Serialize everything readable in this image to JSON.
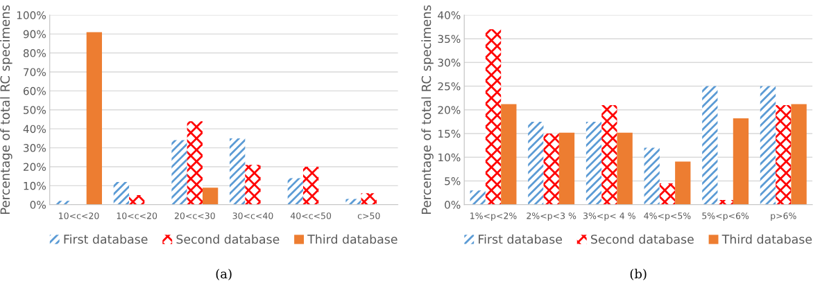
{
  "chart_data": [
    {
      "type": "bar",
      "ylabel": "Percentage of total RC specimens",
      "categories": [
        "10<c<20",
        "10<c<20",
        "20<c<30",
        "30<c<40",
        "40<c<50",
        "c>50"
      ],
      "series": [
        {
          "name": "First database",
          "color": "#5b9bd5",
          "values": [
            2,
            12,
            34,
            35,
            14,
            3
          ]
        },
        {
          "name": "Second database",
          "color": "#ff0000",
          "values": [
            0,
            5,
            44,
            21,
            20,
            6
          ]
        },
        {
          "name": "Third database",
          "color": "#ed7d31",
          "values": [
            91,
            0,
            9,
            0,
            0,
            0
          ]
        }
      ],
      "ylim": [
        0,
        100
      ],
      "yticks": [
        {
          "value": 0,
          "label": "0%"
        },
        {
          "value": 10,
          "label": "10%"
        },
        {
          "value": 20,
          "label": "20%"
        },
        {
          "value": 30,
          "label": "30%"
        },
        {
          "value": 40,
          "label": "40%"
        },
        {
          "value": 50,
          "label": "50%"
        },
        {
          "value": 60,
          "label": "60%"
        },
        {
          "value": 70,
          "label": "70%"
        },
        {
          "value": 80,
          "label": "80%"
        },
        {
          "value": 90,
          "label": "90%"
        },
        {
          "value": 100,
          "label": "100%"
        }
      ],
      "grid": "y",
      "legend": "bottom",
      "annotations": [
        "(a)"
      ]
    },
    {
      "type": "bar",
      "ylabel": "Percentage of total RC specimens",
      "categories": [
        "1%<p<2%",
        "2%<p<3 %",
        "3%<p< 4 %",
        "4%<p<5%",
        "5%<p<6%",
        "p>6%"
      ],
      "series": [
        {
          "name": "First database",
          "color": "#5b9bd5",
          "values": [
            3,
            17.5,
            17.5,
            12,
            25,
            25
          ]
        },
        {
          "name": "Second database",
          "color": "#ff0000",
          "values": [
            37,
            15,
            21,
            4.5,
            1,
            21
          ]
        },
        {
          "name": "Third database",
          "color": "#ed7d31",
          "values": [
            21.2,
            15.2,
            15.2,
            9.1,
            18.2,
            21.2
          ]
        }
      ],
      "ylim": [
        0,
        40
      ],
      "yticks": [
        {
          "value": 0,
          "label": "0%"
        },
        {
          "value": 5,
          "label": "5%"
        },
        {
          "value": 10,
          "label": "10%"
        },
        {
          "value": 15,
          "label": "15%"
        },
        {
          "value": 20,
          "label": "20%"
        },
        {
          "value": 25,
          "label": "25%"
        },
        {
          "value": 30,
          "label": "30%"
        },
        {
          "value": 35,
          "label": "35%"
        },
        {
          "value": 40,
          "label": "40%"
        }
      ],
      "grid": "y",
      "legend": "bottom",
      "annotations": [
        "(b)"
      ]
    }
  ]
}
